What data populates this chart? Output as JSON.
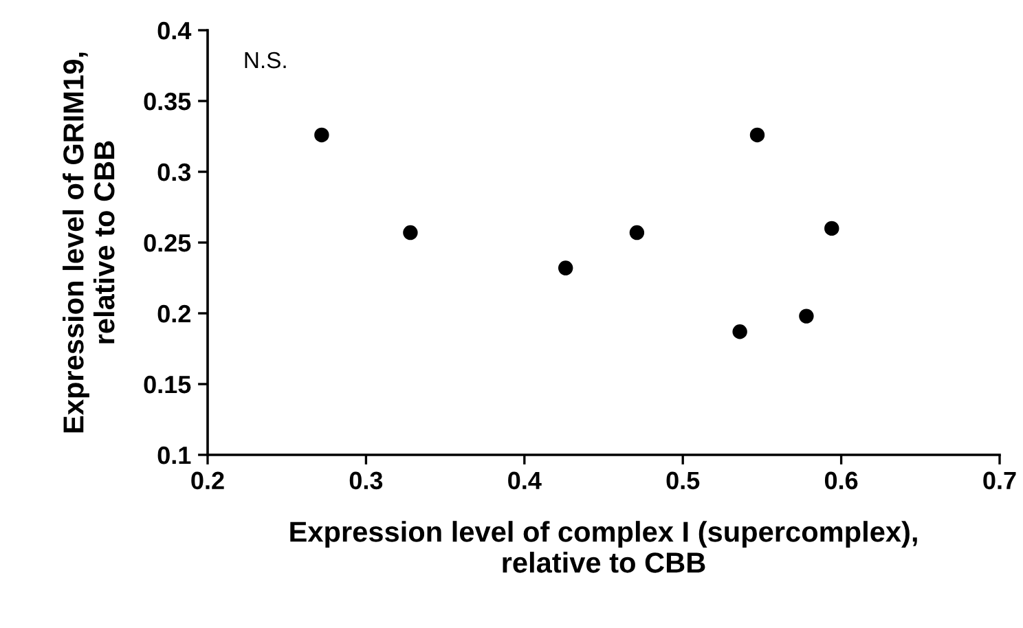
{
  "chart_data": {
    "type": "scatter",
    "xlabel": "Expression level of complex I (supercomplex),\nrelative to CBB",
    "ylabel": "Expression level of GRIM19,\nrelative to CBB",
    "annotations": [
      "N.S."
    ],
    "x": [
      0.272,
      0.328,
      0.426,
      0.471,
      0.547,
      0.536,
      0.578,
      0.594
    ],
    "series": [
      {
        "color": "#000000",
        "values": [
          0.326,
          0.257,
          0.232,
          0.257,
          0.326,
          0.187,
          0.198,
          0.26
        ]
      }
    ],
    "xlim": [
      0.2,
      0.7
    ],
    "xticks": [
      0.2,
      0.3,
      0.4,
      0.5,
      0.6,
      0.7
    ],
    "ylim": [
      0.1,
      0.4
    ],
    "yticks": [
      0.1,
      0.15,
      0.2,
      0.25,
      0.3,
      0.35,
      0.4
    ],
    "marker": "circle",
    "grid": false,
    "legend": false
  }
}
